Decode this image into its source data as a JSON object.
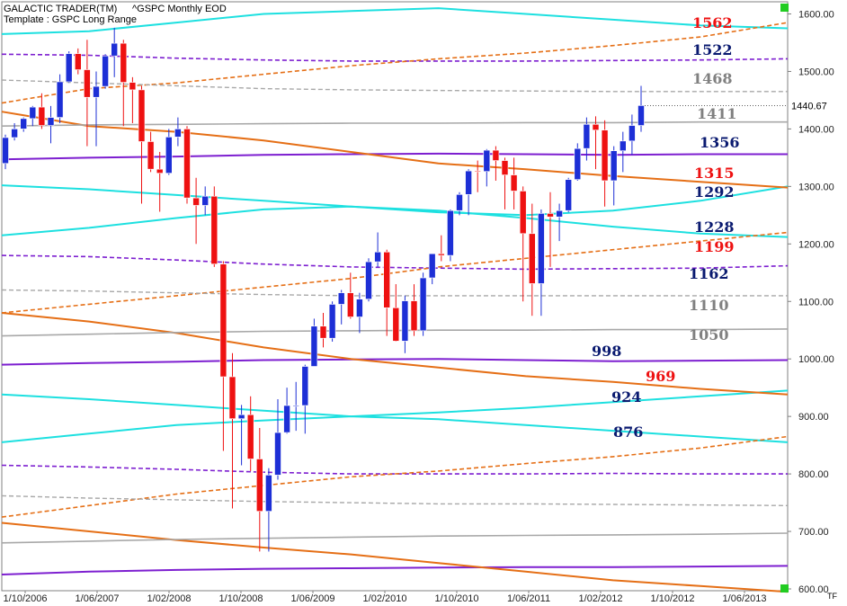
{
  "header": {
    "app_title": "GALACTIC TRADER(TM)",
    "symbol": "^GSPC Monthly EOD",
    "template": "Template : GSPC Long Range",
    "last_price": "1440.67",
    "corner_label": "TF"
  },
  "colors": {
    "bull": "#1d2fd6",
    "bear": "#ee1111",
    "cyan": "#1de0e0",
    "purple": "#7d1fd0",
    "orange": "#e56f16",
    "gray": "#a8a8a8",
    "status_square": "#22cc22"
  },
  "chart_data": {
    "type": "candlestick",
    "title": "",
    "ylim": [
      600,
      1610
    ],
    "y_ticks": [
      "600.00",
      "700.00",
      "800.00",
      "900.00",
      "1000.00",
      "1100.00",
      "1200.00",
      "1300.00",
      "1400.00",
      "1500.00",
      "1600.00"
    ],
    "x_ticks": [
      "1/10/2006",
      "1/06/2007",
      "1/02/2008",
      "1/10/2008",
      "1/06/2009",
      "1/02/2010",
      "1/10/2010",
      "1/06/2011",
      "1/02/2012",
      "1/10/2012",
      "1/06/2013"
    ],
    "x_start": "2006-10",
    "candles": [
      {
        "o": 1340,
        "h": 1390,
        "l": 1330,
        "c": 1385
      },
      {
        "o": 1385,
        "h": 1410,
        "l": 1380,
        "c": 1400
      },
      {
        "o": 1400,
        "h": 1420,
        "l": 1395,
        "c": 1418
      },
      {
        "o": 1418,
        "h": 1440,
        "l": 1405,
        "c": 1438
      },
      {
        "o": 1438,
        "h": 1462,
        "l": 1400,
        "c": 1406
      },
      {
        "o": 1406,
        "h": 1440,
        "l": 1375,
        "c": 1420
      },
      {
        "o": 1420,
        "h": 1495,
        "l": 1410,
        "c": 1482
      },
      {
        "o": 1482,
        "h": 1535,
        "l": 1480,
        "c": 1531
      },
      {
        "o": 1531,
        "h": 1540,
        "l": 1495,
        "c": 1503
      },
      {
        "o": 1503,
        "h": 1555,
        "l": 1370,
        "c": 1455
      },
      {
        "o": 1455,
        "h": 1500,
        "l": 1370,
        "c": 1474
      },
      {
        "o": 1474,
        "h": 1530,
        "l": 1470,
        "c": 1527
      },
      {
        "o": 1527,
        "h": 1576,
        "l": 1490,
        "c": 1549
      },
      {
        "o": 1549,
        "h": 1555,
        "l": 1405,
        "c": 1481
      },
      {
        "o": 1481,
        "h": 1490,
        "l": 1410,
        "c": 1468
      },
      {
        "o": 1468,
        "h": 1475,
        "l": 1270,
        "c": 1378
      },
      {
        "o": 1378,
        "h": 1395,
        "l": 1325,
        "c": 1330
      },
      {
        "o": 1330,
        "h": 1360,
        "l": 1256,
        "c": 1323
      },
      {
        "o": 1323,
        "h": 1400,
        "l": 1320,
        "c": 1386
      },
      {
        "o": 1386,
        "h": 1420,
        "l": 1370,
        "c": 1400
      },
      {
        "o": 1400,
        "h": 1405,
        "l": 1270,
        "c": 1280
      },
      {
        "o": 1280,
        "h": 1315,
        "l": 1200,
        "c": 1267
      },
      {
        "o": 1267,
        "h": 1300,
        "l": 1250,
        "c": 1283
      },
      {
        "o": 1283,
        "h": 1300,
        "l": 1160,
        "c": 1165
      },
      {
        "o": 1165,
        "h": 1170,
        "l": 840,
        "c": 969
      },
      {
        "o": 969,
        "h": 1010,
        "l": 740,
        "c": 896
      },
      {
        "o": 896,
        "h": 920,
        "l": 815,
        "c": 903
      },
      {
        "o": 903,
        "h": 935,
        "l": 805,
        "c": 826
      },
      {
        "o": 826,
        "h": 880,
        "l": 665,
        "c": 735
      },
      {
        "o": 735,
        "h": 810,
        "l": 665,
        "c": 798
      },
      {
        "o": 798,
        "h": 930,
        "l": 790,
        "c": 872
      },
      {
        "o": 872,
        "h": 950,
        "l": 870,
        "c": 919
      },
      {
        "o": 919,
        "h": 960,
        "l": 875,
        "c": 919
      },
      {
        "o": 919,
        "h": 990,
        "l": 870,
        "c": 987
      },
      {
        "o": 987,
        "h": 1070,
        "l": 990,
        "c": 1057
      },
      {
        "o": 1057,
        "h": 1080,
        "l": 1020,
        "c": 1036
      },
      {
        "o": 1036,
        "h": 1100,
        "l": 1030,
        "c": 1095
      },
      {
        "o": 1095,
        "h": 1120,
        "l": 1060,
        "c": 1115
      },
      {
        "o": 1115,
        "h": 1150,
        "l": 1070,
        "c": 1073
      },
      {
        "o": 1073,
        "h": 1115,
        "l": 1045,
        "c": 1104
      },
      {
        "o": 1104,
        "h": 1175,
        "l": 1100,
        "c": 1169
      },
      {
        "o": 1169,
        "h": 1220,
        "l": 1160,
        "c": 1186
      },
      {
        "o": 1186,
        "h": 1190,
        "l": 1040,
        "c": 1089
      },
      {
        "o": 1089,
        "h": 1130,
        "l": 1030,
        "c": 1031
      },
      {
        "o": 1031,
        "h": 1110,
        "l": 1010,
        "c": 1101
      },
      {
        "o": 1101,
        "h": 1130,
        "l": 1040,
        "c": 1049
      },
      {
        "o": 1049,
        "h": 1150,
        "l": 1040,
        "c": 1141
      },
      {
        "o": 1141,
        "h": 1180,
        "l": 1130,
        "c": 1183
      },
      {
        "o": 1183,
        "h": 1215,
        "l": 1170,
        "c": 1180
      },
      {
        "o": 1180,
        "h": 1260,
        "l": 1170,
        "c": 1258
      },
      {
        "o": 1258,
        "h": 1290,
        "l": 1250,
        "c": 1286
      },
      {
        "o": 1286,
        "h": 1330,
        "l": 1250,
        "c": 1327
      },
      {
        "o": 1327,
        "h": 1345,
        "l": 1290,
        "c": 1326
      },
      {
        "o": 1326,
        "h": 1365,
        "l": 1300,
        "c": 1363
      },
      {
        "o": 1363,
        "h": 1370,
        "l": 1310,
        "c": 1345
      },
      {
        "o": 1345,
        "h": 1350,
        "l": 1260,
        "c": 1320
      },
      {
        "o": 1320,
        "h": 1350,
        "l": 1260,
        "c": 1292
      },
      {
        "o": 1292,
        "h": 1300,
        "l": 1100,
        "c": 1218
      },
      {
        "o": 1218,
        "h": 1270,
        "l": 1075,
        "c": 1131
      },
      {
        "o": 1131,
        "h": 1260,
        "l": 1075,
        "c": 1253
      },
      {
        "o": 1253,
        "h": 1290,
        "l": 1160,
        "c": 1247
      },
      {
        "o": 1247,
        "h": 1270,
        "l": 1205,
        "c": 1258
      },
      {
        "o": 1258,
        "h": 1315,
        "l": 1255,
        "c": 1312
      },
      {
        "o": 1312,
        "h": 1375,
        "l": 1310,
        "c": 1366
      },
      {
        "o": 1366,
        "h": 1420,
        "l": 1345,
        "c": 1408
      },
      {
        "o": 1408,
        "h": 1422,
        "l": 1330,
        "c": 1398
      },
      {
        "o": 1398,
        "h": 1415,
        "l": 1265,
        "c": 1310
      },
      {
        "o": 1310,
        "h": 1370,
        "l": 1267,
        "c": 1362
      },
      {
        "o": 1362,
        "h": 1395,
        "l": 1325,
        "c": 1379
      },
      {
        "o": 1379,
        "h": 1425,
        "l": 1355,
        "c": 1406
      },
      {
        "o": 1406,
        "h": 1475,
        "l": 1395,
        "c": 1440.67
      }
    ],
    "level_labels": [
      {
        "text": "1562",
        "color": "#ee1111"
      },
      {
        "text": "1522",
        "color": "#0a1a70"
      },
      {
        "text": "1468",
        "color": "#808080"
      },
      {
        "text": "1411",
        "color": "#808080"
      },
      {
        "text": "1356",
        "color": "#0a1a70"
      },
      {
        "text": "1315",
        "color": "#ee1111"
      },
      {
        "text": "1292",
        "color": "#0a1a70"
      },
      {
        "text": "1228",
        "color": "#0a1a70"
      },
      {
        "text": "1199",
        "color": "#ee1111"
      },
      {
        "text": "1162",
        "color": "#0a1a70"
      },
      {
        "text": "1110",
        "color": "#808080"
      },
      {
        "text": "1050",
        "color": "#808080"
      },
      {
        "text": "998",
        "color": "#0a1a70"
      },
      {
        "text": "969",
        "color": "#ee1111"
      },
      {
        "text": "924",
        "color": "#0a1a70"
      },
      {
        "text": "876",
        "color": "#0a1a70"
      }
    ],
    "lines": [
      {
        "id": "cyan-top",
        "style": "cyan-solid",
        "y": [
          1565,
          1570,
          1585,
          1600,
          1605,
          1610,
          1600,
          1590,
          1580,
          1575
        ]
      },
      {
        "id": "cyan-upper",
        "style": "cyan-solid",
        "y": [
          1302,
          1295,
          1285,
          1275,
          1265,
          1255,
          1250,
          1258,
          1275,
          1300
        ]
      },
      {
        "id": "cyan-mid",
        "style": "cyan-solid",
        "y": [
          1215,
          1228,
          1245,
          1260,
          1265,
          1258,
          1245,
          1230,
          1218,
          1212
        ]
      },
      {
        "id": "cyan-low1",
        "style": "cyan-solid",
        "y": [
          938,
          930,
          920,
          910,
          900,
          895,
          885,
          875,
          865,
          855
        ]
      },
      {
        "id": "cyan-low2",
        "style": "cyan-solid",
        "y": [
          855,
          870,
          885,
          893,
          900,
          907,
          915,
          925,
          935,
          945
        ]
      },
      {
        "id": "purple-1522",
        "style": "purple-dashed",
        "y": [
          1530,
          1528,
          1523,
          1520,
          1518,
          1518,
          1518,
          1519,
          1520,
          1522
        ]
      },
      {
        "id": "purple-1356",
        "style": "purple-solid",
        "y": [
          1347,
          1350,
          1352,
          1355,
          1356,
          1357,
          1356,
          1355,
          1356,
          1356
        ]
      },
      {
        "id": "purple-1162",
        "style": "purple-dashed",
        "y": [
          1180,
          1178,
          1172,
          1165,
          1160,
          1158,
          1156,
          1157,
          1158,
          1162
        ]
      },
      {
        "id": "purple-998",
        "style": "purple-solid",
        "y": [
          990,
          993,
          995,
          998,
          999,
          1000,
          998,
          996,
          997,
          998
        ]
      },
      {
        "id": "purple-800",
        "style": "purple-dashed",
        "y": [
          815,
          812,
          808,
          803,
          800,
          800,
          800,
          801,
          800,
          800
        ]
      },
      {
        "id": "purple-640",
        "style": "purple-solid",
        "y": [
          625,
          630,
          633,
          635,
          636,
          637,
          638,
          638,
          639,
          640
        ]
      },
      {
        "id": "orange-high",
        "style": "orange-dashed",
        "y": [
          1445,
          1470,
          1480,
          1495,
          1510,
          1522,
          1532,
          1545,
          1560,
          1585
        ]
      },
      {
        "id": "orange-1315",
        "style": "orange-solid",
        "y": [
          1430,
          1405,
          1395,
          1380,
          1360,
          1340,
          1330,
          1318,
          1308,
          1298
        ]
      },
      {
        "id": "orange-1199",
        "style": "orange-dashed",
        "y": [
          1080,
          1095,
          1110,
          1125,
          1140,
          1160,
          1175,
          1190,
          1205,
          1220
        ]
      },
      {
        "id": "orange-969",
        "style": "orange-solid",
        "y": [
          1080,
          1065,
          1045,
          1020,
          1000,
          985,
          970,
          960,
          948,
          938
        ]
      },
      {
        "id": "orange-low-dash",
        "style": "orange-dashed",
        "y": [
          725,
          745,
          765,
          780,
          795,
          805,
          818,
          830,
          845,
          865
        ]
      },
      {
        "id": "orange-low-solid",
        "style": "orange-solid",
        "y": [
          715,
          700,
          685,
          672,
          660,
          645,
          630,
          615,
          605,
          595
        ]
      },
      {
        "id": "gray-1468",
        "style": "gray-dashed",
        "y": [
          1485,
          1480,
          1475,
          1470,
          1468,
          1467,
          1466,
          1465,
          1465,
          1465
        ]
      },
      {
        "id": "gray-1411",
        "style": "gray-solid",
        "y": [
          1405,
          1407,
          1408,
          1409,
          1410,
          1410,
          1411,
          1411,
          1412,
          1412
        ]
      },
      {
        "id": "gray-1110",
        "style": "gray-dashed",
        "y": [
          1120,
          1118,
          1115,
          1112,
          1110,
          1110,
          1110,
          1110,
          1110,
          1110
        ]
      },
      {
        "id": "gray-1050",
        "style": "gray-solid",
        "y": [
          1040,
          1043,
          1046,
          1048,
          1049,
          1050,
          1050,
          1051,
          1051,
          1052
        ]
      },
      {
        "id": "gray-760",
        "style": "gray-dashed",
        "y": [
          762,
          758,
          755,
          752,
          750,
          748,
          748,
          747,
          746,
          745
        ]
      },
      {
        "id": "gray-700",
        "style": "gray-solid",
        "y": [
          680,
          683,
          686,
          688,
          690,
          692,
          693,
          694,
          695,
          697
        ]
      }
    ]
  }
}
